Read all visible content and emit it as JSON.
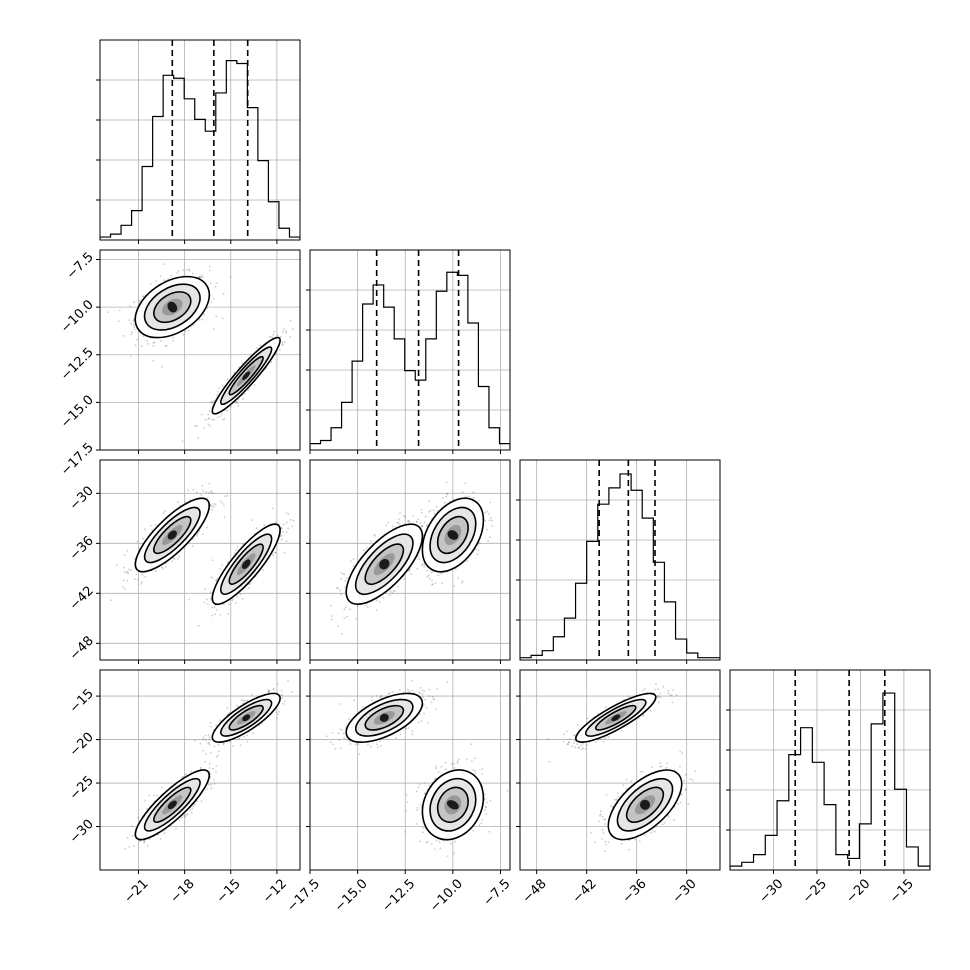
{
  "chart_data": {
    "type": "corner",
    "title": "",
    "parameters": [
      "",
      "",
      "",
      ""
    ],
    "ranges": [
      [
        -23.5,
        -10.5
      ],
      [
        -17.5,
        -7.0
      ],
      [
        -50.0,
        -26.0
      ],
      [
        -35.0,
        -12.0
      ]
    ],
    "ticks": [
      {
        "values": [
          -21,
          -18,
          -15,
          -12
        ],
        "labels": [
          "−21",
          "−18",
          "−15",
          "−12"
        ]
      },
      {
        "values": [
          -17.5,
          -15.0,
          -12.5,
          -10.0,
          -7.5
        ],
        "labels": [
          "−17.5",
          "−15.0",
          "−12.5",
          "−10.0",
          "−7.5"
        ]
      },
      {
        "values": [
          -48,
          -42,
          -36,
          -30
        ],
        "labels": [
          "−48",
          "−42",
          "−36",
          "−30"
        ]
      },
      {
        "values": [
          -30,
          -25,
          -20,
          -15
        ],
        "labels": [
          "−30",
          "−25",
          "−20",
          "−15"
        ]
      }
    ],
    "quantiles": [
      [
        -18.8,
        -16.1,
        -13.9
      ],
      [
        -14.0,
        -11.8,
        -9.7
      ],
      [
        -40.5,
        -37.0,
        -33.8
      ],
      [
        -27.5,
        -21.3,
        -17.2
      ]
    ],
    "histograms": [
      {
        "counts": [
          1,
          2,
          5,
          10,
          25,
          42,
          56,
          55,
          48,
          41,
          37,
          50,
          61,
          60,
          45,
          27,
          13,
          4,
          1
        ],
        "ymax": 68
      },
      {
        "counts": [
          2,
          3,
          7,
          15,
          28,
          46,
          52,
          45,
          35,
          25,
          22,
          35,
          50,
          56,
          55,
          40,
          20,
          7,
          2
        ],
        "ymax": 63
      },
      {
        "counts": [
          1,
          2,
          4,
          10,
          18,
          33,
          51,
          67,
          74,
          80,
          73,
          61,
          42,
          25,
          9,
          3,
          1,
          1
        ],
        "ymax": 86
      },
      {
        "counts": [
          1,
          2,
          4,
          9,
          18,
          30,
          37,
          28,
          17,
          4,
          3,
          12,
          38,
          46,
          21,
          6,
          1
        ],
        "ymax": 52
      }
    ],
    "modes": [
      {
        "w": 0.5,
        "mean": [
          -18.8,
          -10.0,
          -35.0,
          -27.5
        ],
        "sd": [
          1.2,
          0.8,
          2.2,
          2.0
        ],
        "corr": [
          [
            1,
            0.4,
            0.8,
            0.85
          ],
          [
            0.4,
            1,
            0.4,
            0.2
          ],
          [
            0.8,
            0.4,
            1,
            0.6
          ],
          [
            0.85,
            0.2,
            0.6,
            1
          ]
        ]
      },
      {
        "w": 0.5,
        "mean": [
          -14.0,
          -13.6,
          -38.5,
          -17.5
        ],
        "sd": [
          1.1,
          1.0,
          2.4,
          1.4
        ],
        "corr": [
          [
            1,
            0.93,
            0.85,
            0.8
          ],
          [
            0.93,
            1,
            0.7,
            0.6
          ],
          [
            0.85,
            0.7,
            1,
            0.85
          ],
          [
            0.8,
            0.6,
            0.85,
            1
          ]
        ]
      }
    ],
    "grid": true,
    "contour_levels": [
      0.12,
      0.4,
      0.7
    ]
  }
}
